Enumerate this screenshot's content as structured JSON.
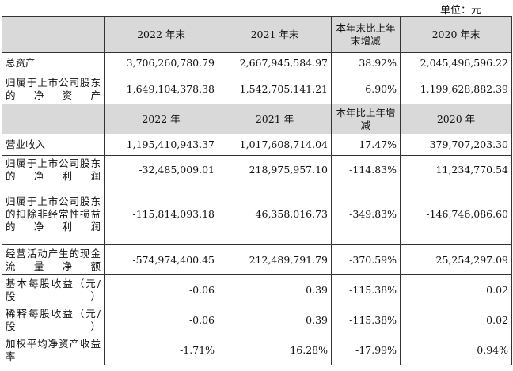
{
  "unit_label": "单位：元",
  "header1": [
    "",
    "2022 年末",
    "2021 年末",
    "本年末比上年末增减",
    "2020 年末"
  ],
  "header2": [
    "",
    "2022 年",
    "2021 年",
    "本年比上年增减",
    "2020 年"
  ],
  "rows_balance": [
    {
      "label": "总资产",
      "v2022": "3,706,260,780.79",
      "v2021": "2,667,945,584.97",
      "change": "38.92%",
      "v2020": "2,045,496,596.22"
    },
    {
      "label": "归属于上市公司股东的净资产",
      "v2022": "1,649,104,378.38",
      "v2021": "1,542,705,141.21",
      "change": "6.90%",
      "v2020": "1,199,628,882.39"
    }
  ],
  "rows_income": [
    {
      "label": "营业收入",
      "v2022": "1,195,410,943.37",
      "v2021": "1,017,608,714.04",
      "change": "17.47%",
      "v2020": "379,707,203.30"
    },
    {
      "label": "归属于上市公司股东的净利润",
      "v2022": "-32,485,009.01",
      "v2021": "218,975,957.10",
      "change": "-114.83%",
      "v2020": "11,234,770.54"
    },
    {
      "label": "归属于上市公司股东的扣除非经常性损益的净利润",
      "v2022": "-115,814,093.18",
      "v2021": "46,358,016.73",
      "change": "-349.83%",
      "v2020": "-146,746,086.60"
    },
    {
      "label": "经营活动产生的现金流量净额",
      "v2022": "-574,974,400.45",
      "v2021": "212,489,791.79",
      "change": "-370.59%",
      "v2020": "25,254,297.09"
    },
    {
      "label": "基本每股收益（元/股）",
      "v2022": "-0.06",
      "v2021": "0.39",
      "change": "-115.38%",
      "v2020": "0.02"
    },
    {
      "label": "稀释每股收益（元/股）",
      "v2022": "-0.06",
      "v2021": "0.39",
      "change": "-115.38%",
      "v2020": "0.02"
    },
    {
      "label": "加权平均净资产收益率",
      "v2022": "-1.71%",
      "v2021": "16.28%",
      "change": "-17.99%",
      "v2020": "0.94%"
    }
  ]
}
